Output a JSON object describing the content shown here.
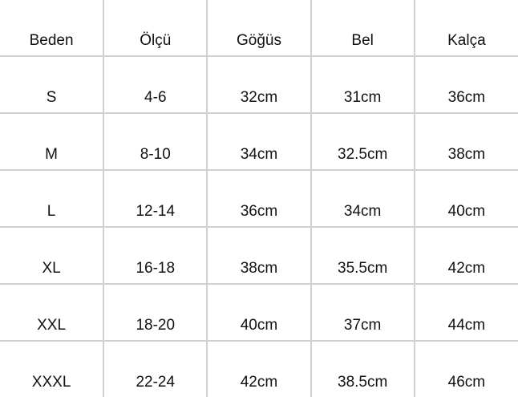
{
  "headers": [
    "Beden",
    "Ölçü",
    "Göğüs",
    "Bel",
    "Kalça"
  ],
  "rows": [
    [
      "S",
      "4-6",
      "32cm",
      "31cm",
      "36cm"
    ],
    [
      "M",
      "8-10",
      "34cm",
      "32.5cm",
      "38cm"
    ],
    [
      "L",
      "12-14",
      "36cm",
      "34cm",
      "40cm"
    ],
    [
      "XL",
      "16-18",
      "38cm",
      "35.5cm",
      "42cm"
    ],
    [
      "XXL",
      "18-20",
      "40cm",
      "37cm",
      "44cm"
    ],
    [
      "XXXL",
      "22-24",
      "42cm",
      "38.5cm",
      "46cm"
    ]
  ]
}
